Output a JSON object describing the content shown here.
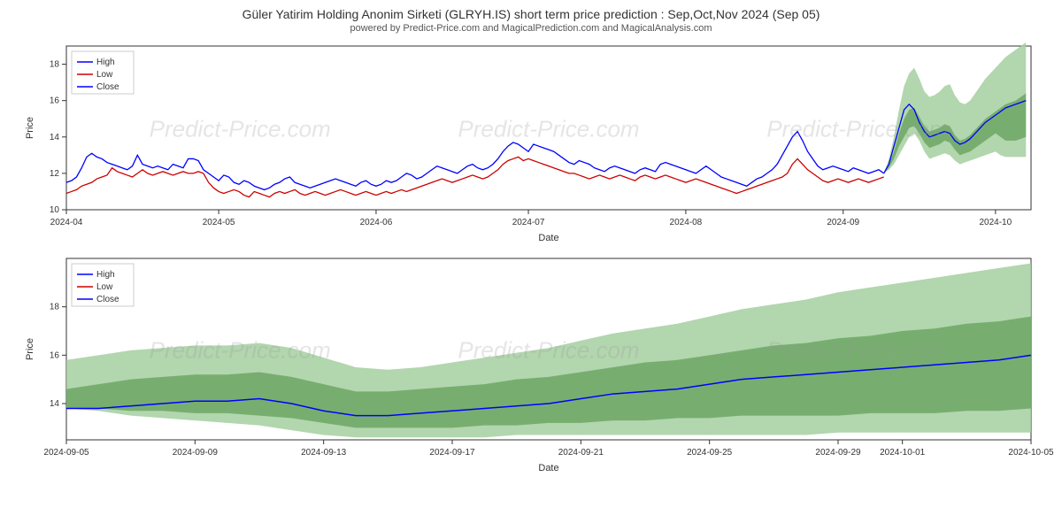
{
  "title": "Güler Yatirim Holding Anonim Sirketi (GLRYH.IS) short term price prediction : Sep,Oct,Nov 2024 (Sep 05)",
  "subtitle": "powered by Predict-Price.com and MagicalPrediction.com and MagicalAnalysis.com",
  "watermark_text": "Predict-Price.com",
  "legend": [
    "High",
    "Low",
    "Close"
  ],
  "legend_colors": [
    "#0000ff",
    "#cc0000",
    "#0000ff"
  ],
  "chart1": {
    "type": "line",
    "ylabel": "Price",
    "xlabel": "Date",
    "ylim": [
      10,
      19
    ],
    "yticks": [
      10,
      12,
      14,
      16,
      18
    ],
    "xticks": [
      "2024-04",
      "2024-05",
      "2024-06",
      "2024-07",
      "2024-08",
      "2024-09",
      "2024-10"
    ],
    "xlim_idx": [
      0,
      190
    ],
    "xtick_idx": [
      0,
      30,
      61,
      91,
      122,
      153,
      183
    ],
    "background_color": "#ffffff",
    "grid_color": "#000000",
    "line_width": 1.3,
    "colors": {
      "high": "#0000ff",
      "low": "#cc0000",
      "close": "#0000ff"
    },
    "high": [
      11.5,
      11.6,
      11.8,
      12.3,
      12.9,
      13.1,
      12.9,
      12.8,
      12.6,
      12.5,
      12.4,
      12.3,
      12.2,
      12.4,
      13.0,
      12.5,
      12.4,
      12.3,
      12.4,
      12.3,
      12.2,
      12.5,
      12.4,
      12.3,
      12.8,
      12.8,
      12.7,
      12.2,
      12.0,
      11.8,
      11.6,
      11.9,
      11.8,
      11.5,
      11.4,
      11.6,
      11.5,
      11.3,
      11.2,
      11.1,
      11.2,
      11.4,
      11.5,
      11.7,
      11.8,
      11.5,
      11.4,
      11.3,
      11.2,
      11.3,
      11.4,
      11.5,
      11.6,
      11.7,
      11.6,
      11.5,
      11.4,
      11.3,
      11.5,
      11.6,
      11.4,
      11.3,
      11.4,
      11.6,
      11.5,
      11.6,
      11.8,
      12.0,
      11.9,
      11.7,
      11.8,
      12.0,
      12.2,
      12.4,
      12.3,
      12.2,
      12.1,
      12.0,
      12.2,
      12.4,
      12.5,
      12.3,
      12.2,
      12.3,
      12.5,
      12.8,
      13.2,
      13.5,
      13.7,
      13.6,
      13.4,
      13.2,
      13.6,
      13.5,
      13.4,
      13.3,
      13.2,
      13.0,
      12.8,
      12.6,
      12.5,
      12.7,
      12.6,
      12.5,
      12.3,
      12.2,
      12.1,
      12.3,
      12.4,
      12.3,
      12.2,
      12.1,
      12.0,
      12.2,
      12.3,
      12.2,
      12.1,
      12.5,
      12.6,
      12.5,
      12.4,
      12.3,
      12.2,
      12.1,
      12.0,
      12.2,
      12.4,
      12.2,
      12.0,
      11.8,
      11.7,
      11.6,
      11.5,
      11.4,
      11.3,
      11.5,
      11.7,
      11.8,
      12.0,
      12.2,
      12.5,
      13.0,
      13.5,
      14.0,
      14.3,
      13.8,
      13.2,
      12.8,
      12.4,
      12.2,
      12.3,
      12.4,
      12.3,
      12.2,
      12.1,
      12.3,
      12.2,
      12.1,
      12.0,
      12.1,
      12.2,
      12.0
    ],
    "low": [
      10.9,
      11.0,
      11.1,
      11.3,
      11.4,
      11.5,
      11.7,
      11.8,
      11.9,
      12.3,
      12.1,
      12.0,
      11.9,
      11.8,
      12.0,
      12.2,
      12.0,
      11.9,
      12.0,
      12.1,
      12.0,
      11.9,
      12.0,
      12.1,
      12.0,
      12.0,
      12.1,
      12.0,
      11.5,
      11.2,
      11.0,
      10.9,
      11.0,
      11.1,
      11.0,
      10.8,
      10.7,
      11.0,
      10.9,
      10.8,
      10.7,
      10.9,
      11.0,
      10.9,
      11.0,
      11.1,
      10.9,
      10.8,
      10.9,
      11.0,
      10.9,
      10.8,
      10.9,
      11.0,
      11.1,
      11.0,
      10.9,
      10.8,
      10.9,
      11.0,
      10.9,
      10.8,
      10.9,
      11.0,
      10.9,
      11.0,
      11.1,
      11.0,
      11.1,
      11.2,
      11.3,
      11.4,
      11.5,
      11.6,
      11.7,
      11.6,
      11.5,
      11.6,
      11.7,
      11.8,
      11.9,
      11.8,
      11.7,
      11.8,
      12.0,
      12.2,
      12.5,
      12.7,
      12.8,
      12.9,
      12.7,
      12.8,
      12.7,
      12.6,
      12.5,
      12.4,
      12.3,
      12.2,
      12.1,
      12.0,
      12.0,
      11.9,
      11.8,
      11.7,
      11.8,
      11.9,
      11.8,
      11.7,
      11.8,
      11.9,
      11.8,
      11.7,
      11.6,
      11.8,
      11.9,
      11.8,
      11.7,
      11.8,
      11.9,
      11.8,
      11.7,
      11.6,
      11.5,
      11.6,
      11.7,
      11.6,
      11.5,
      11.4,
      11.3,
      11.2,
      11.1,
      11.0,
      10.9,
      11.0,
      11.1,
      11.2,
      11.3,
      11.4,
      11.5,
      11.6,
      11.7,
      11.8,
      12.0,
      12.5,
      12.8,
      12.5,
      12.2,
      12.0,
      11.8,
      11.6,
      11.5,
      11.6,
      11.7,
      11.6,
      11.5,
      11.6,
      11.7,
      11.6,
      11.5,
      11.6,
      11.7,
      11.8
    ],
    "close_start_idx": 161,
    "close": [
      12.0,
      12.5,
      13.5,
      14.5,
      15.5,
      15.8,
      15.5,
      14.8,
      14.3,
      14.0,
      14.1,
      14.2,
      14.3,
      14.2,
      13.8,
      13.6,
      13.7,
      13.9,
      14.2,
      14.5,
      14.8,
      15.0,
      15.2,
      15.4,
      15.6,
      15.7,
      15.8,
      15.9,
      16.0
    ],
    "band_start_idx": 161,
    "band_upper": [
      12.0,
      12.8,
      14.0,
      15.5,
      16.8,
      17.5,
      17.8,
      17.2,
      16.5,
      16.2,
      16.3,
      16.5,
      16.8,
      16.9,
      16.3,
      15.9,
      15.8,
      16.0,
      16.4,
      16.8,
      17.2,
      17.5,
      17.8,
      18.1,
      18.4,
      18.6,
      18.8,
      19.0,
      19.2
    ],
    "band_lower": [
      12.0,
      12.2,
      12.5,
      13.0,
      13.5,
      14.0,
      14.2,
      13.8,
      13.2,
      12.8,
      12.9,
      13.0,
      13.1,
      13.0,
      12.7,
      12.5,
      12.6,
      12.7,
      12.8,
      12.9,
      13.0,
      13.1,
      13.2,
      13.0,
      12.9,
      12.9,
      12.9,
      12.9,
      12.9
    ],
    "band_inner_upper": [
      12.0,
      12.5,
      13.2,
      14.2,
      15.0,
      15.5,
      15.6,
      15.1,
      14.6,
      14.3,
      14.4,
      14.5,
      14.7,
      14.6,
      14.1,
      13.8,
      13.9,
      14.1,
      14.4,
      14.7,
      15.0,
      15.2,
      15.4,
      15.6,
      15.8,
      15.9,
      16.0,
      16.2,
      16.4
    ],
    "band_inner_lower": [
      12.0,
      12.3,
      12.8,
      13.5,
      14.0,
      14.5,
      14.6,
      14.2,
      13.7,
      13.4,
      13.5,
      13.6,
      13.8,
      13.7,
      13.3,
      13.0,
      13.1,
      13.2,
      13.4,
      13.6,
      13.8,
      14.0,
      14.2,
      14.0,
      13.8,
      13.8,
      13.8,
      13.9,
      14.0
    ],
    "band_colors": {
      "outer": "#a5cfa0",
      "inner": "#6ca764"
    }
  },
  "chart2": {
    "type": "line",
    "ylabel": "Price",
    "xlabel": "Date",
    "ylim": [
      12.5,
      20
    ],
    "yticks": [
      14,
      16,
      18
    ],
    "xticks": [
      "2024-09-05",
      "2024-09-09",
      "2024-09-13",
      "2024-09-17",
      "2024-09-21",
      "2024-09-25",
      "2024-09-29",
      "2024-10-01",
      "2024-10-05"
    ],
    "xlim_idx": [
      0,
      30
    ],
    "xtick_idx": [
      0,
      4,
      8,
      12,
      16,
      20,
      24,
      26,
      30
    ],
    "background_color": "#ffffff",
    "grid_color": "#000000",
    "line_width": 1.5,
    "colors": {
      "close": "#0000ff"
    },
    "close": [
      13.8,
      13.8,
      13.9,
      14.0,
      14.1,
      14.1,
      14.2,
      14.0,
      13.7,
      13.5,
      13.5,
      13.6,
      13.7,
      13.8,
      13.9,
      14.0,
      14.2,
      14.4,
      14.5,
      14.6,
      14.8,
      15.0,
      15.1,
      15.2,
      15.3,
      15.4,
      15.5,
      15.6,
      15.7,
      15.8,
      16.0
    ],
    "band_upper": [
      15.8,
      16.0,
      16.2,
      16.3,
      16.4,
      16.4,
      16.5,
      16.3,
      15.9,
      15.5,
      15.4,
      15.5,
      15.7,
      15.9,
      16.1,
      16.3,
      16.6,
      16.9,
      17.1,
      17.3,
      17.6,
      17.9,
      18.1,
      18.3,
      18.6,
      18.8,
      19.0,
      19.2,
      19.4,
      19.6,
      19.8
    ],
    "band_lower": [
      13.8,
      13.7,
      13.5,
      13.4,
      13.3,
      13.2,
      13.1,
      12.9,
      12.7,
      12.6,
      12.6,
      12.6,
      12.6,
      12.6,
      12.7,
      12.7,
      12.7,
      12.7,
      12.7,
      12.7,
      12.7,
      12.7,
      12.7,
      12.7,
      12.8,
      12.8,
      12.8,
      12.8,
      12.8,
      12.8,
      12.8
    ],
    "band_inner_upper": [
      14.6,
      14.8,
      15.0,
      15.1,
      15.2,
      15.2,
      15.3,
      15.1,
      14.8,
      14.5,
      14.5,
      14.6,
      14.7,
      14.8,
      15.0,
      15.1,
      15.3,
      15.5,
      15.7,
      15.8,
      16.0,
      16.2,
      16.4,
      16.5,
      16.7,
      16.8,
      17.0,
      17.1,
      17.3,
      17.4,
      17.6
    ],
    "band_inner_lower": [
      13.8,
      13.8,
      13.7,
      13.7,
      13.6,
      13.6,
      13.5,
      13.4,
      13.2,
      13.0,
      13.0,
      13.0,
      13.0,
      13.1,
      13.1,
      13.2,
      13.2,
      13.3,
      13.3,
      13.4,
      13.4,
      13.5,
      13.5,
      13.5,
      13.5,
      13.6,
      13.6,
      13.6,
      13.7,
      13.7,
      13.8
    ],
    "band_colors": {
      "outer": "#a5cfa0",
      "inner": "#6ca764"
    }
  }
}
